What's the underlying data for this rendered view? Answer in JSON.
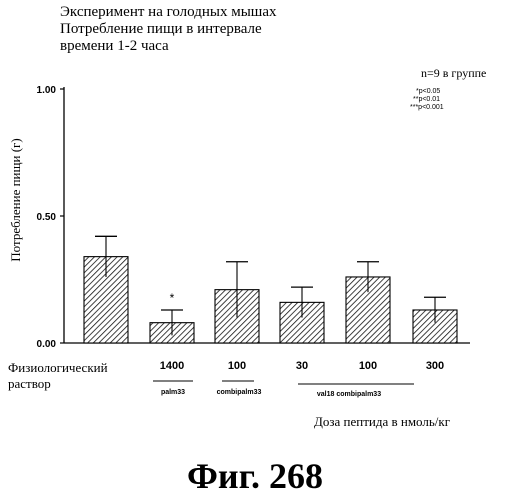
{
  "header": {
    "title_line1": "Эксперимент на голодных мышах",
    "title_line2": "Потребление пищи в интервале",
    "title_line3": "времени 1-2 часа"
  },
  "annotation": {
    "n_text": "n=9 в группе",
    "sig1": "*p<0.05",
    "sig2": "**p<0.01",
    "sig3": "***p<0.001"
  },
  "chart_data": {
    "type": "bar",
    "ylabel": "Потребление пищи (г)",
    "xlabel": "Доза пептида в нмоль/кг",
    "ylim": [
      0,
      1.0
    ],
    "yticks": [
      "0.00",
      "0.50",
      "1.00"
    ],
    "categories": [
      "Физиологический раствор",
      "1400",
      "100",
      "30",
      "100",
      "300"
    ],
    "values": [
      0.34,
      0.08,
      0.21,
      0.16,
      0.26,
      0.13
    ],
    "errors": [
      0.08,
      0.05,
      0.11,
      0.06,
      0.06,
      0.05
    ],
    "significance": [
      "",
      "*",
      "",
      "",
      "",
      ""
    ],
    "bar_pattern": "diagonal-hatch",
    "groups": [
      {
        "label": "palm33",
        "categories": [
          1
        ]
      },
      {
        "label": "combipalm33",
        "categories": [
          2
        ]
      },
      {
        "label": "val18 combipalm33",
        "categories": [
          3,
          4,
          5
        ]
      }
    ]
  },
  "category_labels": {
    "saline_line1": "Физиологический",
    "saline_line2": "раствор",
    "dose1": "1400",
    "dose2": "100",
    "dose3": "30",
    "dose4": "100",
    "dose5": "300"
  },
  "group_labels": {
    "g1": "palm33",
    "g2": "combipalm33",
    "g3": "val18 combipalm33"
  },
  "figure_caption": "Фиг. 268"
}
